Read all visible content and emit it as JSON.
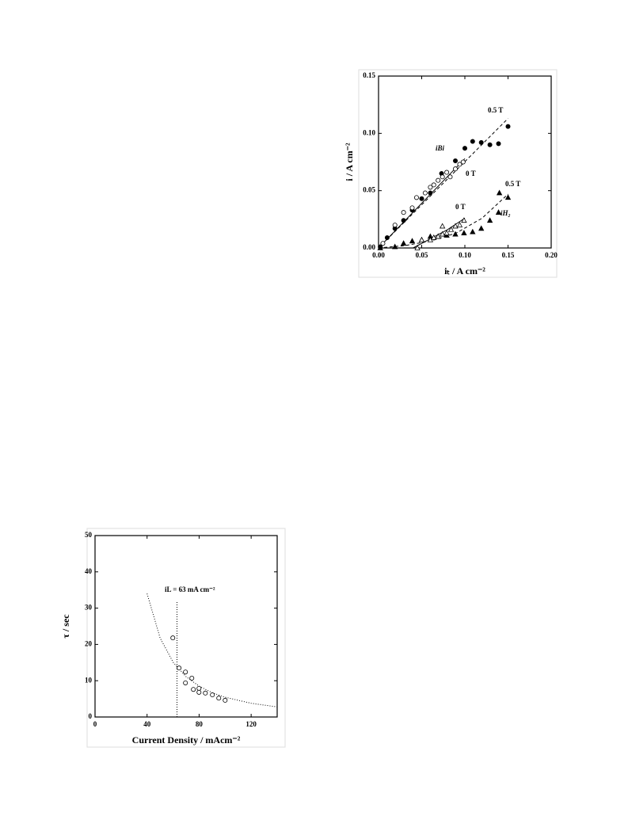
{
  "chart_data": [
    {
      "type": "scatter",
      "xlabel": "iₜ / A cm⁻²",
      "ylabel": "i / A cm⁻²",
      "xlim": [
        0,
        0.2
      ],
      "ylim": [
        0,
        0.15
      ],
      "xticks": [
        {
          "value": 0,
          "label": "0.00"
        },
        {
          "value": 0.05,
          "label": "0.05"
        },
        {
          "value": 0.1,
          "label": "0.10"
        },
        {
          "value": 0.15,
          "label": "0.15"
        },
        {
          "value": 0.2,
          "label": "0.20"
        }
      ],
      "yticks": [
        {
          "value": 0,
          "label": "0.00"
        },
        {
          "value": 0.05,
          "label": "0.05"
        },
        {
          "value": 0.1,
          "label": "0.10"
        },
        {
          "value": 0.15,
          "label": "0.15"
        }
      ],
      "series": [
        {
          "marker": "filled-circle",
          "color": "#000000",
          "x": [
            0.002,
            0.01,
            0.019,
            0.029,
            0.039,
            0.05,
            0.06,
            0.073,
            0.089,
            0.1,
            0.109,
            0.119,
            0.129,
            0.139,
            0.15
          ],
          "values": [
            0.001,
            0.009,
            0.017,
            0.024,
            0.033,
            0.043,
            0.048,
            0.065,
            0.076,
            0.087,
            0.093,
            0.092,
            0.09,
            0.091,
            0.106
          ]
        },
        {
          "marker": "open-circle",
          "color": "#000000",
          "x": [
            0.005,
            0.019,
            0.029,
            0.039,
            0.044,
            0.054,
            0.06,
            0.064,
            0.069,
            0.074,
            0.079,
            0.083,
            0.089,
            0.094,
            0.098
          ],
          "values": [
            0.004,
            0.02,
            0.031,
            0.035,
            0.044,
            0.048,
            0.053,
            0.055,
            0.059,
            0.062,
            0.066,
            0.062,
            0.069,
            0.073,
            0.075
          ]
        },
        {
          "marker": "filled-triangle",
          "color": "#000000",
          "x": [
            0.002,
            0.019,
            0.029,
            0.039,
            0.05,
            0.06,
            0.069,
            0.079,
            0.089,
            0.099,
            0.109,
            0.119,
            0.129,
            0.139,
            0.14,
            0.15
          ],
          "values": [
            0,
            0.001,
            0.004,
            0.006,
            0.007,
            0.01,
            0.01,
            0.011,
            0.012,
            0.013,
            0.014,
            0.017,
            0.024,
            0.031,
            0.048,
            0.044
          ]
        },
        {
          "marker": "open-triangle",
          "color": "#000000",
          "x": [
            0.045,
            0.05,
            0.06,
            0.064,
            0.069,
            0.074,
            0.074,
            0.079,
            0.084,
            0.089,
            0.094,
            0.099
          ],
          "values": [
            0,
            0.007,
            0.007,
            0.009,
            0.01,
            0.012,
            0.019,
            0.013,
            0.016,
            0.019,
            0.02,
            0.024
          ]
        }
      ],
      "lines": [
        {
          "style": "dashed",
          "x": [
            0,
            0.15
          ],
          "values": [
            0,
            0.113
          ]
        },
        {
          "style": "solid",
          "x": [
            0,
            0.1
          ],
          "values": [
            0,
            0.078
          ]
        },
        {
          "style": "dashed",
          "x": [
            0,
            0.03,
            0.06,
            0.09,
            0.12,
            0.15
          ],
          "values": [
            0,
            0.002,
            0.006,
            0.013,
            0.026,
            0.047
          ]
        },
        {
          "style": "solid",
          "x": [
            0.04,
            0.06,
            0.08,
            0.1
          ],
          "values": [
            0,
            0.008,
            0.016,
            0.026
          ]
        }
      ],
      "annotations": [
        "0.5 T",
        "iBi",
        "0 T",
        "0 T",
        "0.5 T",
        "iH₂"
      ]
    },
    {
      "type": "scatter",
      "xlabel": "Current Density / mAcm⁻²",
      "ylabel": "τ / sec",
      "xlim": [
        0,
        140
      ],
      "ylim": [
        0,
        50
      ],
      "xticks": [
        0,
        40,
        80,
        120
      ],
      "yticks": [
        0,
        10,
        20,
        30,
        40,
        50
      ],
      "series": [
        {
          "marker": "open-circle",
          "color": "#000000",
          "x": [
            59.8,
            64.6,
            69.5,
            69.5,
            74.4,
            75.6,
            79.9,
            79.9,
            84.8,
            90.2,
            95.1,
            100
          ],
          "values": [
            21.8,
            13.5,
            12.4,
            9.4,
            10.7,
            7.6,
            7.9,
            6.8,
            6.6,
            6.1,
            5.2,
            4.6
          ]
        }
      ],
      "lines": [
        {
          "style": "dotted",
          "x": [
            40,
            50,
            60,
            70,
            80,
            90,
            100,
            120,
            140
          ],
          "values": [
            34,
            21.8,
            15.1,
            11.1,
            8.5,
            6.7,
            5.44,
            3.78,
            2.78
          ]
        },
        {
          "style": "dotted",
          "x": [
            63,
            63
          ],
          "values": [
            0,
            32
          ]
        }
      ],
      "annotations": [
        "iL = 63 mA cm⁻²"
      ]
    }
  ]
}
